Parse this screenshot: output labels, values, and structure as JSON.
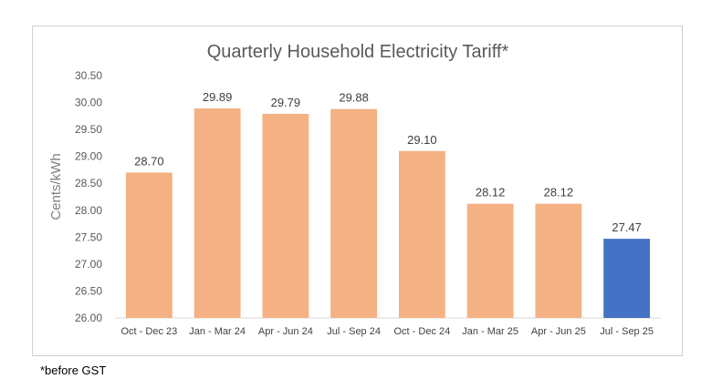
{
  "chart_data": {
    "type": "bar",
    "title": "Quarterly Household Electricity Tariff*",
    "xlabel": "",
    "ylabel": "Cents/kWh",
    "ylim": [
      26.0,
      30.5
    ],
    "yticks": [
      "26.00",
      "26.50",
      "27.00",
      "27.50",
      "28.00",
      "28.50",
      "29.00",
      "29.50",
      "30.00",
      "30.50"
    ],
    "grid": false,
    "categories": [
      "Oct - Dec 23",
      "Jan - Mar 24",
      "Apr - Jun 24",
      "Jul - Sep 24",
      "Oct - Dec 24",
      "Jan - Mar 25",
      "Apr - Jun 25",
      "Jul - Sep 25"
    ],
    "values": [
      28.7,
      29.89,
      29.79,
      29.88,
      29.1,
      28.12,
      28.12,
      27.47
    ],
    "data_labels": [
      "28.70",
      "29.89",
      "29.79",
      "29.88",
      "29.10",
      "28.12",
      "28.12",
      "27.47"
    ],
    "colors": [
      "#f4b183",
      "#f4b183",
      "#f4b183",
      "#f4b183",
      "#f4b183",
      "#f4b183",
      "#f4b183",
      "#4472c4"
    ]
  },
  "footnote": "*before GST"
}
